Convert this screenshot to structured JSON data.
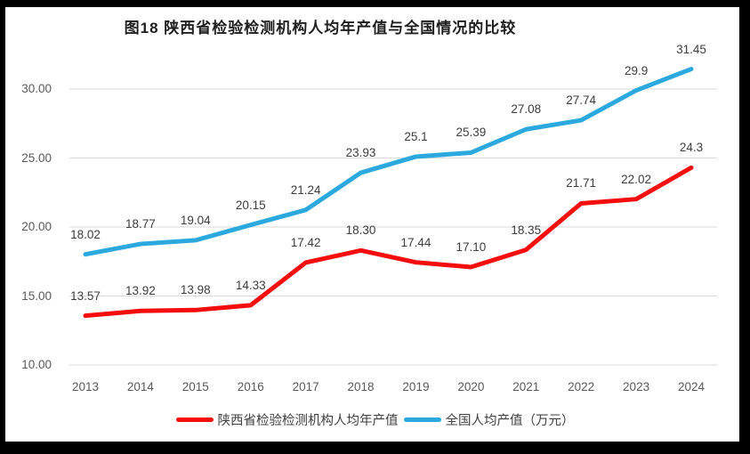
{
  "frame": {
    "border_color": "#000000",
    "background_color": "#ffffff"
  },
  "chart_data": {
    "type": "line",
    "title": "图18 陕西省检验检测机构人均年产值与全国情况的比较",
    "categories": [
      "2013",
      "2014",
      "2015",
      "2016",
      "2017",
      "2018",
      "2019",
      "2020",
      "2021",
      "2022",
      "2023",
      "2024"
    ],
    "series": [
      {
        "name": "陕西省检验检测机构人均年产值",
        "color": "#f50d0d",
        "values": [
          13.57,
          13.92,
          13.98,
          14.33,
          17.42,
          18.3,
          17.44,
          17.1,
          18.35,
          21.71,
          22.02,
          24.3
        ],
        "labels": [
          "13.57",
          "13.92",
          "13.98",
          "14.33",
          "17.42",
          "18.30",
          "17.44",
          "17.10",
          "18.35",
          "21.71",
          "22.02",
          "24.3"
        ]
      },
      {
        "name": "全国人均产值（万元）",
        "color": "#2ba9df",
        "values": [
          18.02,
          18.77,
          19.04,
          20.15,
          21.24,
          23.93,
          25.1,
          25.39,
          27.08,
          27.74,
          29.9,
          31.45
        ],
        "labels": [
          "18.02",
          "18.77",
          "19.04",
          "20.15",
          "21.24",
          "23.93",
          "25.1",
          "25.39",
          "27.08",
          "27.74",
          "29.9",
          "31.45"
        ]
      }
    ],
    "xlabel": "",
    "ylabel": "",
    "ylim": [
      10,
      30
    ],
    "ytick_values": [
      10,
      15,
      20,
      25,
      30
    ],
    "ytick_labels": [
      "10.00",
      "15.00",
      "20.00",
      "25.00",
      "30.00"
    ],
    "grid": "horizontal",
    "gridline_color": "#d9d9d9",
    "axis_label_color": "#595959",
    "data_label_color": "#3d3d3d",
    "legend_position": "bottom"
  }
}
